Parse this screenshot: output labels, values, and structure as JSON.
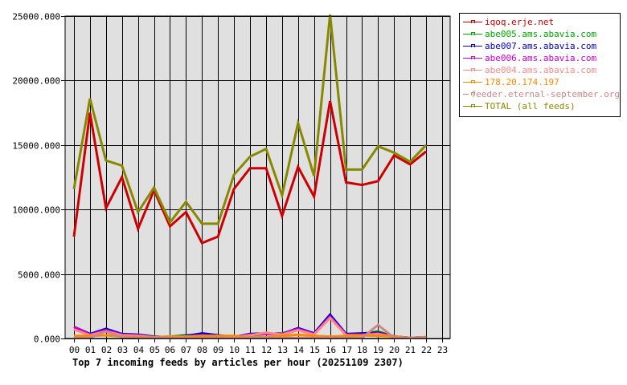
{
  "chart_data": {
    "type": "line",
    "title": "Top 7 incoming feeds by articles per hour (20251109 2307)",
    "xlabel": "",
    "ylabel": "",
    "ylim": [
      0,
      25000
    ],
    "y_ticks": [
      "0.000",
      "5000.000",
      "10000.000",
      "15000.000",
      "20000.000",
      "25000.000"
    ],
    "y_tick_values": [
      0,
      5000,
      10000,
      15000,
      20000,
      25000
    ],
    "categories": [
      "00",
      "01",
      "02",
      "03",
      "04",
      "05",
      "06",
      "07",
      "08",
      "09",
      "10",
      "11",
      "12",
      "13",
      "14",
      "15",
      "16",
      "17",
      "18",
      "19",
      "20",
      "21",
      "22",
      "23"
    ],
    "grid": true,
    "legend_position": "right",
    "series": [
      {
        "name": "iqoq.erje.net",
        "color": "#cc0000",
        "values": [
          7900,
          17500,
          10100,
          12500,
          8500,
          11500,
          8700,
          9800,
          7400,
          7900,
          11600,
          13200,
          13200,
          9500,
          13300,
          11000,
          18400,
          12100,
          11900,
          12200,
          14200,
          13500,
          14500
        ]
      },
      {
        "name": "abe005.ams.abavia.com",
        "color": "#00aa00",
        "values": [
          700,
          300,
          600,
          300,
          250,
          100,
          150,
          250,
          300,
          200,
          100,
          250,
          350,
          400,
          700,
          350,
          1800,
          300,
          350,
          550,
          150,
          50,
          100
        ]
      },
      {
        "name": "abe007.ams.abavia.com",
        "color": "#0000cc",
        "values": [
          900,
          350,
          750,
          350,
          300,
          150,
          100,
          200,
          400,
          250,
          100,
          350,
          400,
          350,
          800,
          400,
          1850,
          350,
          400,
          450,
          150,
          50,
          100
        ]
      },
      {
        "name": "abe006.ams.abavia.com",
        "color": "#cc00cc",
        "values": [
          900,
          300,
          650,
          300,
          250,
          100,
          100,
          150,
          250,
          200,
          100,
          300,
          350,
          350,
          750,
          350,
          1700,
          300,
          300,
          400,
          150,
          50,
          100
        ]
      },
      {
        "name": "abe004.ams.abavia.com",
        "color": "#ff8888",
        "values": [
          700,
          250,
          550,
          250,
          200,
          100,
          100,
          150,
          200,
          150,
          100,
          250,
          450,
          300,
          650,
          300,
          1600,
          250,
          250,
          350,
          100,
          50,
          100
        ]
      },
      {
        "name": "178.20.174.197",
        "color": "#ff8800",
        "values": [
          200,
          200,
          250,
          150,
          100,
          100,
          150,
          150,
          200,
          200,
          200,
          100,
          100,
          200,
          300,
          200,
          150,
          200,
          250,
          200,
          150,
          50,
          100
        ]
      },
      {
        "name": "feeder.eternal-september.org",
        "color": "#cc8888",
        "values": [
          50,
          50,
          550,
          100,
          50,
          50,
          50,
          50,
          50,
          50,
          50,
          50,
          50,
          50,
          50,
          50,
          50,
          50,
          50,
          1050,
          50,
          50,
          50
        ]
      },
      {
        "name": "TOTAL (all feeds)",
        "color": "#888800",
        "values": [
          11600,
          18600,
          13800,
          13400,
          9800,
          11700,
          9000,
          10600,
          8900,
          8900,
          12700,
          14100,
          14700,
          11100,
          16700,
          12600,
          25100,
          13100,
          13100,
          14900,
          14400,
          13700,
          15000
        ]
      }
    ]
  },
  "legend": {
    "items": [
      {
        "label": "iqoq.erje.net",
        "color": "#cc0000"
      },
      {
        "label": "abe005.ams.abavia.com",
        "color": "#00aa00"
      },
      {
        "label": "abe007.ams.abavia.com",
        "color": "#0000cc"
      },
      {
        "label": "abe006.ams.abavia.com",
        "color": "#cc00cc"
      },
      {
        "label": "abe004.ams.abavia.com",
        "color": "#ff8888"
      },
      {
        "label": "178.20.174.197",
        "color": "#ff8800"
      },
      {
        "label": "feeder.eternal-september.org",
        "color": "#cc8888"
      },
      {
        "label": "TOTAL (all feeds)",
        "color": "#888800"
      }
    ]
  },
  "colors": {
    "plot_background": "#e0e0e0",
    "grid": "#000000"
  }
}
